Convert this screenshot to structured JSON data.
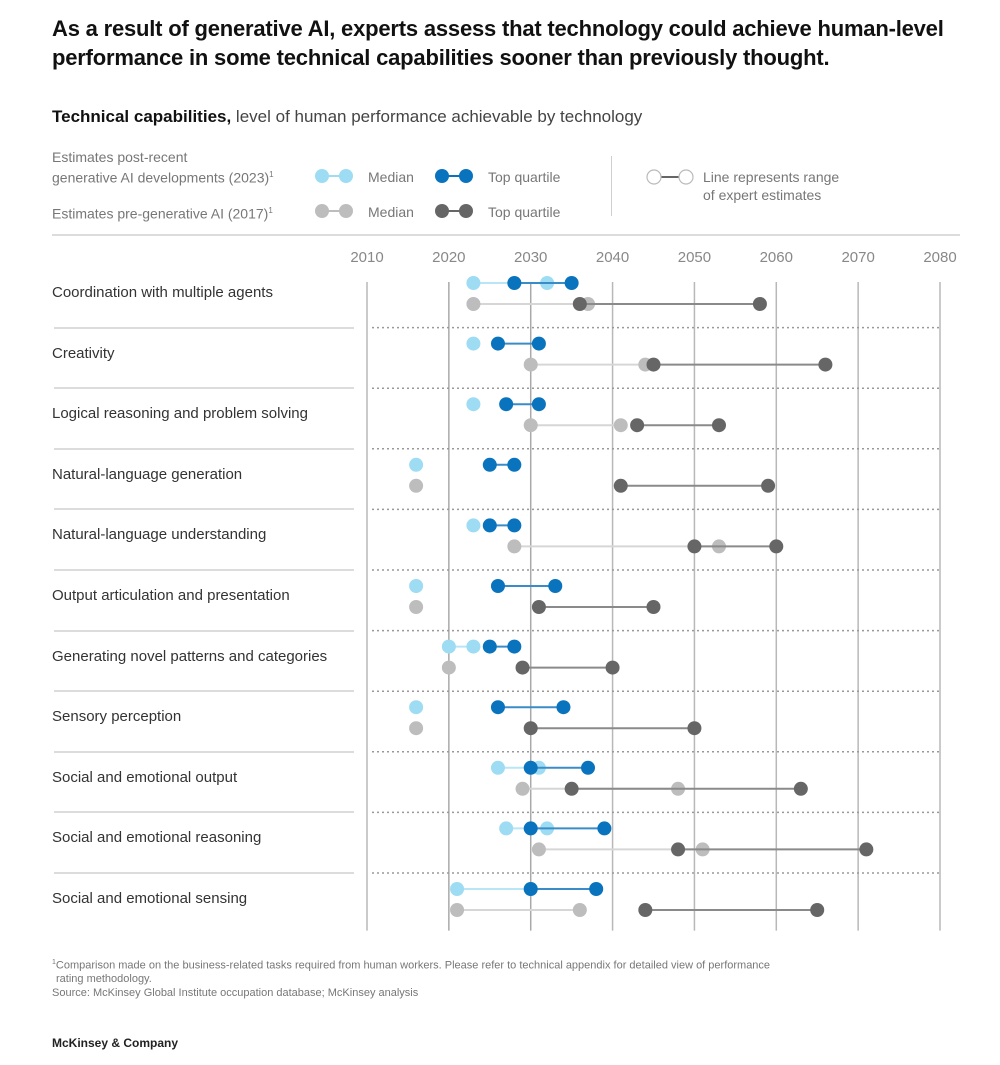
{
  "title": "As a result of generative AI, experts assess that technology could achieve human-level performance in some technical capabilities sooner than previously thought.",
  "subtitle": {
    "bold": "Technical capabilities,",
    "rest": " level of human performance achievable by technology"
  },
  "legend": {
    "post_label_line1": "Estimates post-recent",
    "post_label_line2": "generative AI developments (2023)",
    "pre_label": "Estimates pre-generative AI (2017)",
    "footnote_marker": "1",
    "median": "Median",
    "top_quartile": "Top quartile",
    "range_line1": "Line represents range",
    "range_line2": "of expert estimates",
    "colors": {
      "median_2023": "#9ddcf3",
      "top_quartile_2023": "#0a73bd",
      "median_2017": "#bdbdbd",
      "top_quartile_2017": "#666666"
    }
  },
  "chart_data": {
    "type": "dumbbell",
    "title": "Technical capabilities, level of human performance achievable by technology",
    "xlabel": "",
    "ylabel": "",
    "xlim": [
      2010,
      2080
    ],
    "x_ticks": [
      "2010",
      "2020",
      "2030",
      "2040",
      "2050",
      "2060",
      "2070",
      "2080"
    ],
    "grid": true,
    "legend_position": "top",
    "series": [
      {
        "name": "Median (2023)",
        "key": "median_2023"
      },
      {
        "name": "Top quartile (2023)",
        "key": "top_quartile_2023"
      },
      {
        "name": "Median (2017)",
        "key": "median_2017"
      },
      {
        "name": "Top quartile (2017)",
        "key": "top_quartile_2017"
      }
    ],
    "categories": [
      "Coordination with multiple agents",
      "Creativity",
      "Logical reasoning and problem solving",
      "Natural-language generation",
      "Natural-language understanding",
      "Output articulation and presentation",
      "Generating novel patterns and categories",
      "Sensory perception",
      "Social and emotional output",
      "Social and emotional reasoning",
      "Social and emotional sensing"
    ],
    "rows": [
      {
        "median_2023": [
          2023,
          2032
        ],
        "top_quartile_2023": [
          2028,
          2035
        ],
        "median_2017": [
          2023,
          2037
        ],
        "top_quartile_2017": [
          2036,
          2058
        ]
      },
      {
        "median_2023": [
          2023,
          2023
        ],
        "top_quartile_2023": [
          2026,
          2031
        ],
        "median_2017": [
          2030,
          2044
        ],
        "top_quartile_2017": [
          2045,
          2066
        ]
      },
      {
        "median_2023": [
          2023,
          2023
        ],
        "top_quartile_2023": [
          2027,
          2031
        ],
        "median_2017": [
          2030,
          2041
        ],
        "top_quartile_2017": [
          2043,
          2053
        ]
      },
      {
        "median_2023": [
          2016,
          2016
        ],
        "top_quartile_2023": [
          2025,
          2028
        ],
        "median_2017": [
          2016,
          2016
        ],
        "top_quartile_2017": [
          2041,
          2059
        ]
      },
      {
        "median_2023": [
          2023,
          2023
        ],
        "top_quartile_2023": [
          2025,
          2028
        ],
        "median_2017": [
          2028,
          2053
        ],
        "top_quartile_2017": [
          2050,
          2060
        ]
      },
      {
        "median_2023": [
          2016,
          2016
        ],
        "top_quartile_2023": [
          2026,
          2033
        ],
        "median_2017": [
          2016,
          2016
        ],
        "top_quartile_2017": [
          2031,
          2045
        ]
      },
      {
        "median_2023": [
          2020,
          2023
        ],
        "top_quartile_2023": [
          2025,
          2028
        ],
        "median_2017": [
          2020,
          2020
        ],
        "top_quartile_2017": [
          2029,
          2040
        ]
      },
      {
        "median_2023": [
          2016,
          2016
        ],
        "top_quartile_2023": [
          2026,
          2034
        ],
        "median_2017": [
          2016,
          2016
        ],
        "top_quartile_2017": [
          2030,
          2050
        ]
      },
      {
        "median_2023": [
          2026,
          2031
        ],
        "top_quartile_2023": [
          2030,
          2037
        ],
        "median_2017": [
          2029,
          2048
        ],
        "top_quartile_2017": [
          2035,
          2063
        ]
      },
      {
        "median_2023": [
          2027,
          2032
        ],
        "top_quartile_2023": [
          2030,
          2039
        ],
        "median_2017": [
          2031,
          2051
        ],
        "top_quartile_2017": [
          2048,
          2071
        ]
      },
      {
        "median_2023": [
          2021,
          2030
        ],
        "top_quartile_2023": [
          2030,
          2038
        ],
        "median_2017": [
          2021,
          2036
        ],
        "top_quartile_2017": [
          2044,
          2065
        ]
      }
    ]
  },
  "footer": {
    "footnote_marker": "1",
    "footnote_line1": "Comparison made on the business-related tasks required from human workers. Please refer to technical appendix for detailed view of performance",
    "footnote_line2": "rating methodology.",
    "source": "Source: McKinsey Global Institute occupation database; McKinsey analysis",
    "brand": "McKinsey & Company"
  }
}
